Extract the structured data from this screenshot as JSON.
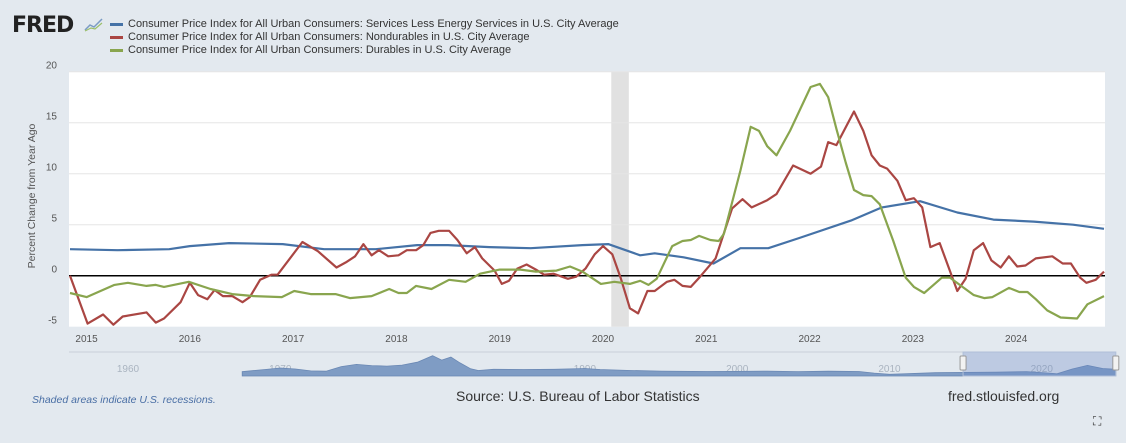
{
  "header": {
    "logo": "FRED"
  },
  "colors": {
    "series1": "#4572a7",
    "series2": "#aa4643",
    "series3": "#89a54e",
    "recession": "#e1e1e1",
    "navigator_fill": "#7f9cc4"
  },
  "footer": {
    "recession_note": "Shaded areas indicate U.S. recessions.",
    "source": "Source: U.S. Bureau of Labor Statistics",
    "site": "fred.stlouisfed.org",
    "fullscreen_icon": "fullscreen-icon"
  },
  "chart_data": {
    "type": "line",
    "ylabel": "Percent Change from Year Ago",
    "ylim": [
      -5,
      20
    ],
    "yticks": [
      "20",
      "15",
      "10",
      "5",
      "0",
      "-5"
    ],
    "xlim": [
      2014.83,
      2024.86
    ],
    "xticks": [
      "2015",
      "2016",
      "2017",
      "2018",
      "2019",
      "2020",
      "2021",
      "2022",
      "2023",
      "2024"
    ],
    "grid": true,
    "legend": "top",
    "recessions": [
      [
        2020.08,
        2020.25
      ]
    ],
    "series": [
      {
        "name": "Consumer Price Index for All Urban Consumers: Services Less Energy Services in U.S. City Average",
        "points": [
          [
            2014.84,
            2.6
          ],
          [
            2015.3,
            2.5
          ],
          [
            2015.8,
            2.6
          ],
          [
            2016.0,
            2.9
          ],
          [
            2016.38,
            3.2
          ],
          [
            2016.9,
            3.1
          ],
          [
            2017.3,
            2.6
          ],
          [
            2017.8,
            2.6
          ],
          [
            2018.2,
            3.0
          ],
          [
            2018.5,
            3.0
          ],
          [
            2018.9,
            2.8
          ],
          [
            2019.3,
            2.7
          ],
          [
            2019.8,
            3.0
          ],
          [
            2020.05,
            3.1
          ],
          [
            2020.36,
            2.0
          ],
          [
            2020.5,
            2.2
          ],
          [
            2020.78,
            1.8
          ],
          [
            2021.07,
            1.2
          ],
          [
            2021.33,
            2.7
          ],
          [
            2021.6,
            2.7
          ],
          [
            2021.9,
            3.7
          ],
          [
            2022.4,
            5.4
          ],
          [
            2022.7,
            6.7
          ],
          [
            2023.07,
            7.3
          ],
          [
            2023.43,
            6.2
          ],
          [
            2023.78,
            5.5
          ],
          [
            2024.17,
            5.3
          ],
          [
            2024.55,
            5.0
          ],
          [
            2024.85,
            4.6
          ]
        ]
      },
      {
        "name": "Consumer Price Index for All Urban Consumers: Nondurables in U.S. City Average",
        "points": [
          [
            2014.84,
            0
          ],
          [
            2015.01,
            -4.7
          ],
          [
            2015.16,
            -3.8
          ],
          [
            2015.26,
            -4.8
          ],
          [
            2015.35,
            -4.0
          ],
          [
            2015.58,
            -3.6
          ],
          [
            2015.67,
            -4.6
          ],
          [
            2015.75,
            -4.2
          ],
          [
            2015.91,
            -2.6
          ],
          [
            2016.0,
            -0.7
          ],
          [
            2016.08,
            -1.9
          ],
          [
            2016.17,
            -2.3
          ],
          [
            2016.24,
            -1.4
          ],
          [
            2016.32,
            -2.0
          ],
          [
            2016.41,
            -2.0
          ],
          [
            2016.51,
            -2.6
          ],
          [
            2016.58,
            -2.1
          ],
          [
            2016.68,
            -0.4
          ],
          [
            2016.79,
            0.1
          ],
          [
            2016.85,
            0.1
          ],
          [
            2017.09,
            3.3
          ],
          [
            2017.24,
            2.4
          ],
          [
            2017.42,
            0.8
          ],
          [
            2017.51,
            1.3
          ],
          [
            2017.6,
            1.9
          ],
          [
            2017.68,
            3.1
          ],
          [
            2017.76,
            2.0
          ],
          [
            2017.83,
            2.5
          ],
          [
            2017.92,
            1.9
          ],
          [
            2018.02,
            2.0
          ],
          [
            2018.1,
            2.5
          ],
          [
            2018.19,
            2.5
          ],
          [
            2018.26,
            3.0
          ],
          [
            2018.33,
            4.2
          ],
          [
            2018.41,
            4.4
          ],
          [
            2018.51,
            4.4
          ],
          [
            2018.59,
            3.5
          ],
          [
            2018.68,
            2.2
          ],
          [
            2018.76,
            2.8
          ],
          [
            2018.83,
            1.7
          ],
          [
            2018.95,
            0.5
          ],
          [
            2019.02,
            -0.8
          ],
          [
            2019.09,
            -0.5
          ],
          [
            2019.17,
            0.7
          ],
          [
            2019.26,
            1.1
          ],
          [
            2019.35,
            0.6
          ],
          [
            2019.43,
            0.1
          ],
          [
            2019.52,
            0.2
          ],
          [
            2019.66,
            -0.3
          ],
          [
            2019.74,
            -0.1
          ],
          [
            2019.83,
            0.7
          ],
          [
            2019.92,
            2.1
          ],
          [
            2020.0,
            2.9
          ],
          [
            2020.09,
            2.1
          ],
          [
            2020.17,
            -0.2
          ],
          [
            2020.26,
            -3.2
          ],
          [
            2020.34,
            -3.7
          ],
          [
            2020.43,
            -1.5
          ],
          [
            2020.5,
            -1.5
          ],
          [
            2020.62,
            -0.6
          ],
          [
            2020.69,
            -0.4
          ],
          [
            2020.77,
            -1.0
          ],
          [
            2020.85,
            -1.1
          ],
          [
            2020.94,
            -0.1
          ],
          [
            2021.09,
            1.7
          ],
          [
            2021.25,
            6.6
          ],
          [
            2021.35,
            7.5
          ],
          [
            2021.44,
            6.7
          ],
          [
            2021.59,
            7.4
          ],
          [
            2021.68,
            8.0
          ],
          [
            2021.84,
            10.8
          ],
          [
            2022.01,
            10.0
          ],
          [
            2022.11,
            10.7
          ],
          [
            2022.18,
            13.1
          ],
          [
            2022.26,
            12.8
          ],
          [
            2022.43,
            16.1
          ],
          [
            2022.52,
            14.2
          ],
          [
            2022.6,
            11.8
          ],
          [
            2022.68,
            10.8
          ],
          [
            2022.75,
            10.5
          ],
          [
            2022.85,
            9.3
          ],
          [
            2022.93,
            7.4
          ],
          [
            2023.01,
            7.6
          ],
          [
            2023.09,
            6.7
          ],
          [
            2023.17,
            2.8
          ],
          [
            2023.26,
            3.2
          ],
          [
            2023.43,
            -1.5
          ],
          [
            2023.51,
            -0.3
          ],
          [
            2023.59,
            2.5
          ],
          [
            2023.68,
            3.2
          ],
          [
            2023.76,
            1.5
          ],
          [
            2023.85,
            0.8
          ],
          [
            2023.93,
            1.9
          ],
          [
            2024.01,
            0.9
          ],
          [
            2024.09,
            1.0
          ],
          [
            2024.19,
            1.7
          ],
          [
            2024.35,
            1.9
          ],
          [
            2024.45,
            1.2
          ],
          [
            2024.53,
            1.2
          ],
          [
            2024.62,
            -0.2
          ],
          [
            2024.68,
            -0.7
          ],
          [
            2024.77,
            -0.4
          ],
          [
            2024.85,
            0.4
          ]
        ]
      },
      {
        "name": "Consumer Price Index for All Urban Consumers: Durables in U.S. City Average",
        "points": [
          [
            2014.84,
            -1.7
          ],
          [
            2015.0,
            -2.1
          ],
          [
            2015.27,
            -0.9
          ],
          [
            2015.4,
            -0.7
          ],
          [
            2015.58,
            -1.0
          ],
          [
            2015.67,
            -0.9
          ],
          [
            2015.75,
            -1.1
          ],
          [
            2015.99,
            -0.6
          ],
          [
            2016.2,
            -1.3
          ],
          [
            2016.41,
            -1.8
          ],
          [
            2016.62,
            -2.0
          ],
          [
            2016.89,
            -2.1
          ],
          [
            2017.01,
            -1.5
          ],
          [
            2017.17,
            -1.8
          ],
          [
            2017.41,
            -1.8
          ],
          [
            2017.55,
            -2.2
          ],
          [
            2017.76,
            -2.0
          ],
          [
            2017.93,
            -1.3
          ],
          [
            2018.02,
            -1.7
          ],
          [
            2018.1,
            -1.7
          ],
          [
            2018.19,
            -1.0
          ],
          [
            2018.34,
            -1.3
          ],
          [
            2018.51,
            -0.4
          ],
          [
            2018.67,
            -0.6
          ],
          [
            2018.81,
            0.2
          ],
          [
            2019.0,
            0.6
          ],
          [
            2019.2,
            0.6
          ],
          [
            2019.35,
            0.4
          ],
          [
            2019.55,
            0.5
          ],
          [
            2019.68,
            0.9
          ],
          [
            2019.8,
            0.4
          ],
          [
            2019.98,
            -0.8
          ],
          [
            2020.11,
            -0.6
          ],
          [
            2020.26,
            -0.8
          ],
          [
            2020.36,
            -0.5
          ],
          [
            2020.44,
            -0.9
          ],
          [
            2020.52,
            -0.3
          ],
          [
            2020.67,
            2.9
          ],
          [
            2020.77,
            3.4
          ],
          [
            2020.85,
            3.5
          ],
          [
            2020.93,
            3.9
          ],
          [
            2021.04,
            3.5
          ],
          [
            2021.12,
            3.4
          ],
          [
            2021.17,
            4.1
          ],
          [
            2021.33,
            10.3
          ],
          [
            2021.43,
            14.6
          ],
          [
            2021.51,
            14.2
          ],
          [
            2021.59,
            12.7
          ],
          [
            2021.68,
            11.8
          ],
          [
            2021.81,
            14.2
          ],
          [
            2022.01,
            18.5
          ],
          [
            2022.1,
            18.8
          ],
          [
            2022.18,
            17.5
          ],
          [
            2022.26,
            14.4
          ],
          [
            2022.35,
            11.1
          ],
          [
            2022.43,
            8.4
          ],
          [
            2022.52,
            7.9
          ],
          [
            2022.6,
            7.8
          ],
          [
            2022.68,
            7.0
          ],
          [
            2022.81,
            3.4
          ],
          [
            2022.93,
            -0.2
          ],
          [
            2023.01,
            -1.1
          ],
          [
            2023.11,
            -1.7
          ],
          [
            2023.2,
            -0.9
          ],
          [
            2023.28,
            -0.2
          ],
          [
            2023.36,
            -0.2
          ],
          [
            2023.48,
            -1.1
          ],
          [
            2023.59,
            -1.9
          ],
          [
            2023.69,
            -2.2
          ],
          [
            2023.77,
            -2.1
          ],
          [
            2023.93,
            -1.2
          ],
          [
            2024.03,
            -1.6
          ],
          [
            2024.11,
            -1.6
          ],
          [
            2024.19,
            -2.3
          ],
          [
            2024.3,
            -3.4
          ],
          [
            2024.43,
            -4.1
          ],
          [
            2024.59,
            -4.2
          ],
          [
            2024.69,
            -2.8
          ],
          [
            2024.85,
            -2.0
          ]
        ]
      }
    ],
    "navigator": {
      "xticks": [
        "1960",
        "1970",
        "1980",
        "1990",
        "2000",
        "2010",
        "2020"
      ],
      "selected_range": [
        2014.83,
        2024.86
      ],
      "points": [
        [
          1967.5,
          3
        ],
        [
          1969,
          4.5
        ],
        [
          1970,
          5.5
        ],
        [
          1971,
          4.8
        ],
        [
          1972,
          3.5
        ],
        [
          1973,
          3.3
        ],
        [
          1974,
          6.5
        ],
        [
          1975,
          8
        ],
        [
          1976,
          7.2
        ],
        [
          1977,
          6.8
        ],
        [
          1978,
          7.5
        ],
        [
          1979,
          9.5
        ],
        [
          1980,
          14
        ],
        [
          1980.6,
          11
        ],
        [
          1981.2,
          13
        ],
        [
          1981.8,
          9
        ],
        [
          1982.5,
          5
        ],
        [
          1983,
          3.8
        ],
        [
          1984,
          4.6
        ],
        [
          1986,
          4.5
        ],
        [
          1988,
          4.6
        ],
        [
          1990,
          5.2
        ],
        [
          1991,
          4.5
        ],
        [
          1993,
          3.8
        ],
        [
          1995,
          3.4
        ],
        [
          1998,
          3.1
        ],
        [
          2000,
          3.2
        ],
        [
          2002,
          3.4
        ],
        [
          2004,
          3
        ],
        [
          2006,
          3.3
        ],
        [
          2008,
          3.1
        ],
        [
          2009,
          2
        ],
        [
          2010,
          1.2
        ],
        [
          2011,
          1.5
        ],
        [
          2013,
          2.3
        ],
        [
          2015,
          2.5
        ],
        [
          2017,
          2.6
        ],
        [
          2019,
          3
        ],
        [
          2020.5,
          2
        ],
        [
          2021,
          1.5
        ],
        [
          2022,
          4.8
        ],
        [
          2023,
          7.3
        ],
        [
          2024,
          5.2
        ],
        [
          2024.86,
          4.6
        ]
      ]
    }
  }
}
